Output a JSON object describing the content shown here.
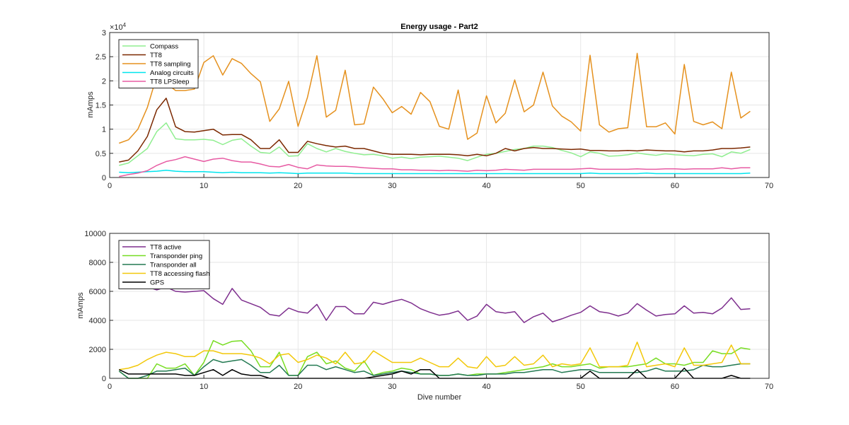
{
  "chart_data": [
    {
      "type": "line",
      "title": "Energy usage - Part2",
      "xlabel": "",
      "ylabel": "mAmps",
      "xlim": [
        0,
        70
      ],
      "ylim": [
        0,
        30000
      ],
      "x_ticks": [
        "0",
        "10",
        "20",
        "30",
        "40",
        "50",
        "60",
        "70"
      ],
      "y_ticks": [
        "0",
        "0.5",
        "1",
        "1.5",
        "2",
        "2.5",
        "3"
      ],
      "y_exponent": "×10",
      "y_exponent_power": "4",
      "grid": true,
      "legend_position": "top-left",
      "x": [
        1,
        2,
        3,
        4,
        5,
        6,
        7,
        8,
        9,
        10,
        11,
        12,
        13,
        14,
        15,
        16,
        17,
        18,
        19,
        20,
        21,
        22,
        23,
        24,
        25,
        26,
        27,
        28,
        29,
        30,
        31,
        32,
        33,
        34,
        35,
        36,
        37,
        38,
        39,
        40,
        41,
        42,
        43,
        44,
        45,
        46,
        47,
        48,
        49,
        50,
        51,
        52,
        53,
        54,
        55,
        56,
        57,
        58,
        59,
        60,
        61,
        62,
        63,
        64,
        65,
        66,
        67,
        68
      ],
      "series": [
        {
          "name": "Compass",
          "color": "#90ee90",
          "values": [
            2500,
            3000,
            4500,
            6000,
            9500,
            11300,
            8000,
            7800,
            7800,
            7900,
            7700,
            6800,
            7700,
            8000,
            6500,
            5200,
            5000,
            6300,
            4400,
            4500,
            7000,
            6000,
            5300,
            6000,
            5400,
            5000,
            4700,
            4800,
            4500,
            4000,
            4200,
            3900,
            4200,
            4300,
            4400,
            4200,
            4000,
            3500,
            4200,
            4800,
            5000,
            5400,
            5800,
            6000,
            6500,
            6500,
            6200,
            5600,
            5100,
            4300,
            5300,
            5000,
            4400,
            4500,
            4700,
            5100,
            4800,
            4600,
            4900,
            4700,
            4600,
            4500,
            4800,
            4900,
            4300,
            5300,
            5000,
            5800
          ]
        },
        {
          "name": "TT8",
          "color": "#7b2800",
          "values": [
            3200,
            3600,
            5500,
            8500,
            14000,
            16400,
            10500,
            9500,
            9400,
            9700,
            10000,
            8800,
            8900,
            8900,
            7800,
            6000,
            6000,
            7800,
            5200,
            5200,
            7500,
            7000,
            6600,
            6300,
            6500,
            6000,
            6000,
            5500,
            5000,
            4800,
            4800,
            4800,
            4700,
            4800,
            4800,
            4800,
            4700,
            4500,
            4800,
            4500,
            5000,
            6000,
            5500,
            6000,
            6200,
            6000,
            6000,
            5900,
            5800,
            5900,
            5600,
            5600,
            5500,
            5500,
            5600,
            5500,
            5700,
            5600,
            5500,
            5500,
            5300,
            5500,
            5500,
            5700,
            6000,
            6000,
            6100,
            6300
          ]
        },
        {
          "name": "TT8 sampling",
          "color": "#e5911e",
          "values": [
            7100,
            7800,
            10000,
            14500,
            21000,
            19500,
            18000,
            18000,
            18300,
            23800,
            25200,
            21200,
            24600,
            23600,
            21500,
            19800,
            11600,
            14200,
            19900,
            10600,
            16600,
            25200,
            12500,
            13900,
            22200,
            10900,
            11100,
            18700,
            16300,
            13400,
            14700,
            13100,
            17600,
            15700,
            10600,
            10000,
            18100,
            7900,
            9200,
            16900,
            11300,
            13300,
            20200,
            13600,
            15000,
            21800,
            14800,
            12700,
            11500,
            9600,
            25300,
            10900,
            9400,
            10100,
            10300,
            25700,
            10500,
            10500,
            11300,
            9000,
            23400,
            11600,
            10900,
            11500,
            10100,
            21800,
            12300,
            13700
          ]
        },
        {
          "name": "Analog circuits",
          "color": "#00e5ee",
          "values": [
            1100,
            1000,
            1100,
            1200,
            1300,
            1500,
            1300,
            1200,
            1200,
            1200,
            1100,
            1000,
            1100,
            1000,
            1000,
            1000,
            900,
            1000,
            900,
            800,
            900,
            900,
            900,
            900,
            900,
            800,
            800,
            800,
            800,
            800,
            800,
            800,
            800,
            800,
            800,
            800,
            800,
            800,
            800,
            800,
            800,
            800,
            800,
            800,
            800,
            800,
            800,
            800,
            800,
            800,
            900,
            800,
            800,
            800,
            800,
            800,
            900,
            800,
            800,
            800,
            800,
            800,
            800,
            800,
            800,
            800,
            800,
            900
          ]
        },
        {
          "name": "TT8 LPSleep",
          "color": "#e75ba3",
          "values": [
            200,
            600,
            900,
            1400,
            2500,
            3300,
            3700,
            4300,
            3800,
            3300,
            3800,
            4000,
            3500,
            3200,
            3200,
            2800,
            2300,
            2200,
            2700,
            2100,
            1800,
            2600,
            2400,
            2300,
            2300,
            2200,
            2000,
            1900,
            1800,
            1800,
            1600,
            1600,
            1500,
            1500,
            1400,
            1500,
            1400,
            1300,
            1500,
            1400,
            1500,
            1700,
            1600,
            1500,
            1700,
            1700,
            1700,
            1700,
            1700,
            1800,
            1900,
            1700,
            1700,
            1700,
            1700,
            1800,
            1700,
            1700,
            1800,
            1800,
            1700,
            1800,
            1800,
            1800,
            2000,
            1800,
            2000,
            2000
          ]
        }
      ]
    },
    {
      "type": "line",
      "title": "",
      "xlabel": "Dive number",
      "ylabel": "mAmps",
      "xlim": [
        0,
        70
      ],
      "ylim": [
        0,
        10000
      ],
      "x_ticks": [
        "0",
        "10",
        "20",
        "30",
        "40",
        "50",
        "60",
        "70"
      ],
      "y_ticks": [
        "0",
        "2000",
        "4000",
        "6000",
        "8000",
        "10000"
      ],
      "grid": true,
      "legend_position": "top-left",
      "x": [
        1,
        2,
        3,
        4,
        5,
        6,
        7,
        8,
        9,
        10,
        11,
        12,
        13,
        14,
        15,
        16,
        17,
        18,
        19,
        20,
        21,
        22,
        23,
        24,
        25,
        26,
        27,
        28,
        29,
        30,
        31,
        32,
        33,
        34,
        35,
        36,
        37,
        38,
        39,
        40,
        41,
        42,
        43,
        44,
        45,
        46,
        47,
        48,
        49,
        50,
        51,
        52,
        53,
        54,
        55,
        56,
        57,
        58,
        59,
        60,
        61,
        62,
        63,
        64,
        65,
        66,
        67,
        68
      ],
      "series": [
        {
          "name": "TT8 active",
          "color": "#7e2f8e",
          "values": [
            6300,
            6800,
            6700,
            6300,
            6100,
            6300,
            6000,
            5950,
            6000,
            6050,
            5500,
            5100,
            6200,
            5400,
            5150,
            4900,
            4400,
            4300,
            4850,
            4600,
            4500,
            5100,
            4000,
            4950,
            4950,
            4450,
            4450,
            5250,
            5100,
            5300,
            5450,
            5200,
            4800,
            4550,
            4350,
            4450,
            4650,
            4000,
            4300,
            5100,
            4600,
            4500,
            4600,
            3850,
            4250,
            4500,
            3900,
            4100,
            4350,
            4550,
            5000,
            4600,
            4500,
            4300,
            4500,
            5150,
            4700,
            4300,
            4400,
            4450,
            5000,
            4500,
            4550,
            4450,
            4850,
            5550,
            4750,
            4800
          ]
        },
        {
          "name": "Transponder ping",
          "color": "#77dd22",
          "values": [
            500,
            0,
            0,
            0,
            1000,
            700,
            700,
            1000,
            200,
            1100,
            2600,
            2300,
            2550,
            2600,
            1900,
            800,
            800,
            1800,
            200,
            200,
            1500,
            1800,
            1000,
            1200,
            700,
            500,
            1200,
            200,
            400,
            500,
            700,
            600,
            300,
            300,
            200,
            200,
            300,
            200,
            300,
            300,
            300,
            400,
            500,
            600,
            700,
            800,
            1000,
            800,
            800,
            900,
            1000,
            700,
            800,
            800,
            800,
            900,
            1000,
            1400,
            1000,
            1000,
            900,
            1100,
            1100,
            1900,
            1700,
            1700,
            2100,
            2000
          ]
        },
        {
          "name": "Transponder all",
          "color": "#237a52",
          "values": [
            500,
            0,
            0,
            200,
            500,
            500,
            600,
            700,
            200,
            800,
            1300,
            1100,
            1200,
            1300,
            900,
            400,
            400,
            900,
            200,
            200,
            900,
            900,
            600,
            800,
            600,
            400,
            500,
            200,
            300,
            400,
            500,
            400,
            300,
            300,
            200,
            200,
            300,
            200,
            200,
            300,
            300,
            300,
            400,
            400,
            500,
            600,
            600,
            400,
            500,
            600,
            600,
            400,
            400,
            400,
            400,
            400,
            500,
            700,
            500,
            500,
            500,
            600,
            900,
            800,
            800,
            900,
            1000,
            1000
          ]
        },
        {
          "name": "TT8 accessing flash",
          "color": "#f2c80a",
          "values": [
            600,
            700,
            900,
            1300,
            1600,
            1800,
            1700,
            1500,
            1500,
            1900,
            1900,
            1700,
            1700,
            1700,
            1600,
            1400,
            1000,
            1600,
            1700,
            1100,
            1300,
            1600,
            1400,
            1000,
            1800,
            1000,
            1100,
            1900,
            1500,
            1100,
            1100,
            1100,
            1400,
            1100,
            800,
            800,
            1400,
            800,
            700,
            1500,
            800,
            900,
            1500,
            900,
            1000,
            1600,
            800,
            1000,
            900,
            1000,
            2100,
            800,
            800,
            800,
            900,
            2500,
            800,
            900,
            1000,
            800,
            2100,
            900,
            900,
            1000,
            1100,
            2300,
            1000,
            1000
          ]
        },
        {
          "name": "GPS",
          "color": "#000000",
          "values": [
            600,
            300,
            300,
            300,
            300,
            300,
            300,
            200,
            200,
            400,
            600,
            200,
            600,
            300,
            200,
            200,
            0,
            0,
            0,
            0,
            0,
            0,
            0,
            0,
            0,
            0,
            0,
            100,
            200,
            300,
            500,
            300,
            600,
            600,
            0,
            0,
            0,
            0,
            0,
            0,
            0,
            0,
            0,
            0,
            0,
            0,
            0,
            0,
            0,
            0,
            500,
            0,
            0,
            0,
            0,
            600,
            0,
            0,
            0,
            0,
            700,
            0,
            0,
            0,
            0,
            200,
            0,
            0
          ]
        }
      ]
    }
  ]
}
